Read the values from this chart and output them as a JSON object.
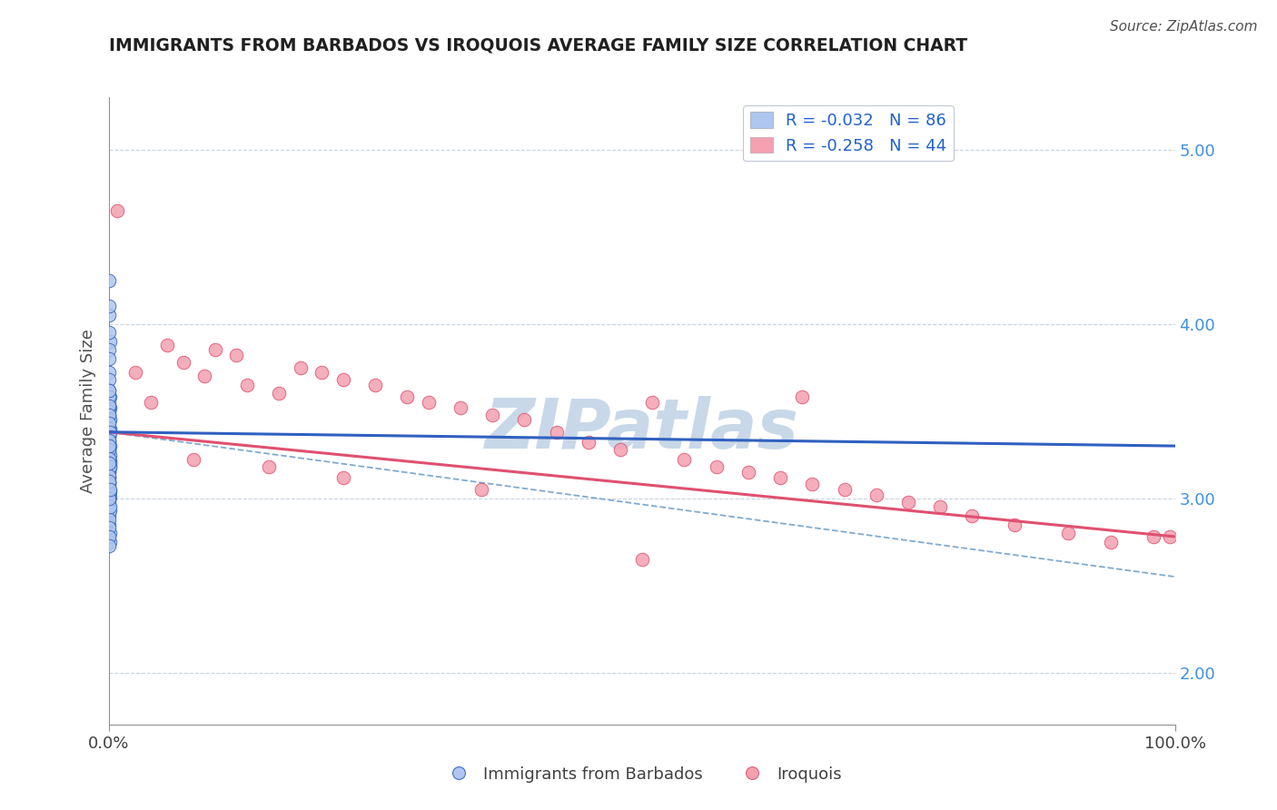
{
  "title": "IMMIGRANTS FROM BARBADOS VS IROQUOIS AVERAGE FAMILY SIZE CORRELATION CHART",
  "source_text": "Source: ZipAtlas.com",
  "ylabel": "Average Family Size",
  "right_yticks": [
    2.0,
    3.0,
    4.0,
    5.0
  ],
  "xlim": [
    0.0,
    100.0
  ],
  "ylim": [
    1.7,
    5.3
  ],
  "xticklabels": [
    "0.0%",
    "100.0%"
  ],
  "legend_r1": "R = -0.032",
  "legend_n1": "N = 86",
  "legend_r2": "R = -0.258",
  "legend_n2": "N = 44",
  "series1_color": "#aec6f0",
  "series2_color": "#f4a0b0",
  "trend1_color": "#3060c0",
  "trend2_color": "#e05070",
  "dash_color": "#80aad0",
  "watermark": "ZIPatlas",
  "watermark_color": "#c8d8e8",
  "background_color": "#ffffff",
  "grid_color": "#c8d4de",
  "title_color": "#202020",
  "right_tick_color": "#4090e0",
  "legend_text_color": "#2060d0",
  "series1_name": "Immigrants from Barbados",
  "series2_name": "Iroquois",
  "blue_x": [
    0.05,
    0.08,
    0.1,
    0.05,
    0.06,
    0.07,
    0.03,
    0.04,
    0.06,
    0.08,
    0.1,
    0.09,
    0.07,
    0.05,
    0.06,
    0.08,
    0.04,
    0.03,
    0.05,
    0.07,
    0.09,
    0.1,
    0.04,
    0.06,
    0.08,
    0.05,
    0.07,
    0.09,
    0.03,
    0.05,
    0.07,
    0.1,
    0.04,
    0.06,
    0.05,
    0.08,
    0.09,
    0.03,
    0.05,
    0.08,
    0.1,
    0.04,
    0.07,
    0.06,
    0.05,
    0.08,
    0.09,
    0.03,
    0.05,
    0.09,
    0.1,
    0.04,
    0.07,
    0.06,
    0.05,
    0.08,
    0.03,
    0.05,
    0.08,
    0.09,
    0.11,
    0.04,
    0.07,
    0.06,
    0.07,
    0.09,
    0.03,
    0.05,
    0.08,
    0.1,
    0.04,
    0.06,
    0.05,
    0.08,
    0.09,
    0.03,
    0.05,
    0.07,
    0.08,
    0.1,
    0.03,
    0.05,
    0.06,
    0.04,
    0.07,
    0.09
  ],
  "blue_y": [
    4.25,
    4.05,
    3.9,
    4.1,
    3.95,
    3.85,
    3.8,
    3.72,
    3.68,
    3.62,
    3.58,
    3.52,
    3.48,
    3.44,
    3.4,
    3.36,
    3.33,
    3.3,
    3.27,
    3.24,
    3.21,
    3.18,
    3.15,
    3.12,
    3.09,
    3.06,
    3.04,
    3.01,
    3.52,
    3.48,
    3.44,
    3.4,
    3.36,
    3.32,
    3.28,
    3.24,
    3.2,
    3.16,
    3.12,
    3.08,
    3.04,
    3.0,
    2.96,
    2.92,
    3.55,
    3.5,
    3.45,
    3.4,
    3.35,
    3.3,
    3.25,
    3.2,
    3.15,
    3.1,
    3.05,
    3.0,
    2.95,
    2.9,
    2.85,
    2.8,
    2.75,
    3.58,
    3.53,
    3.48,
    3.43,
    3.38,
    3.33,
    3.28,
    3.23,
    3.18,
    3.13,
    3.08,
    3.03,
    2.98,
    2.93,
    2.88,
    2.83,
    2.78,
    2.73,
    2.95,
    3.62,
    3.0,
    3.1,
    3.2,
    3.3,
    3.05
  ],
  "pink_x": [
    0.8,
    2.5,
    5.5,
    9.0,
    13.0,
    16.0,
    4.0,
    7.0,
    10.0,
    12.0,
    18.0,
    20.0,
    22.0,
    25.0,
    28.0,
    30.0,
    33.0,
    36.0,
    39.0,
    42.0,
    45.0,
    48.0,
    51.0,
    54.0,
    57.0,
    60.0,
    63.0,
    66.0,
    69.0,
    72.0,
    75.0,
    78.0,
    81.0,
    85.0,
    90.0,
    94.0,
    98.0,
    99.5,
    8.0,
    15.0,
    22.0,
    35.0,
    50.0,
    65.0
  ],
  "pink_y": [
    4.65,
    3.72,
    3.88,
    3.7,
    3.65,
    3.6,
    3.55,
    3.78,
    3.85,
    3.82,
    3.75,
    3.72,
    3.68,
    3.65,
    3.58,
    3.55,
    3.52,
    3.48,
    3.45,
    3.38,
    3.32,
    3.28,
    3.55,
    3.22,
    3.18,
    3.15,
    3.12,
    3.08,
    3.05,
    3.02,
    2.98,
    2.95,
    2.9,
    2.85,
    2.8,
    2.75,
    2.78,
    2.78,
    3.22,
    3.18,
    3.12,
    3.05,
    2.65,
    3.58
  ]
}
